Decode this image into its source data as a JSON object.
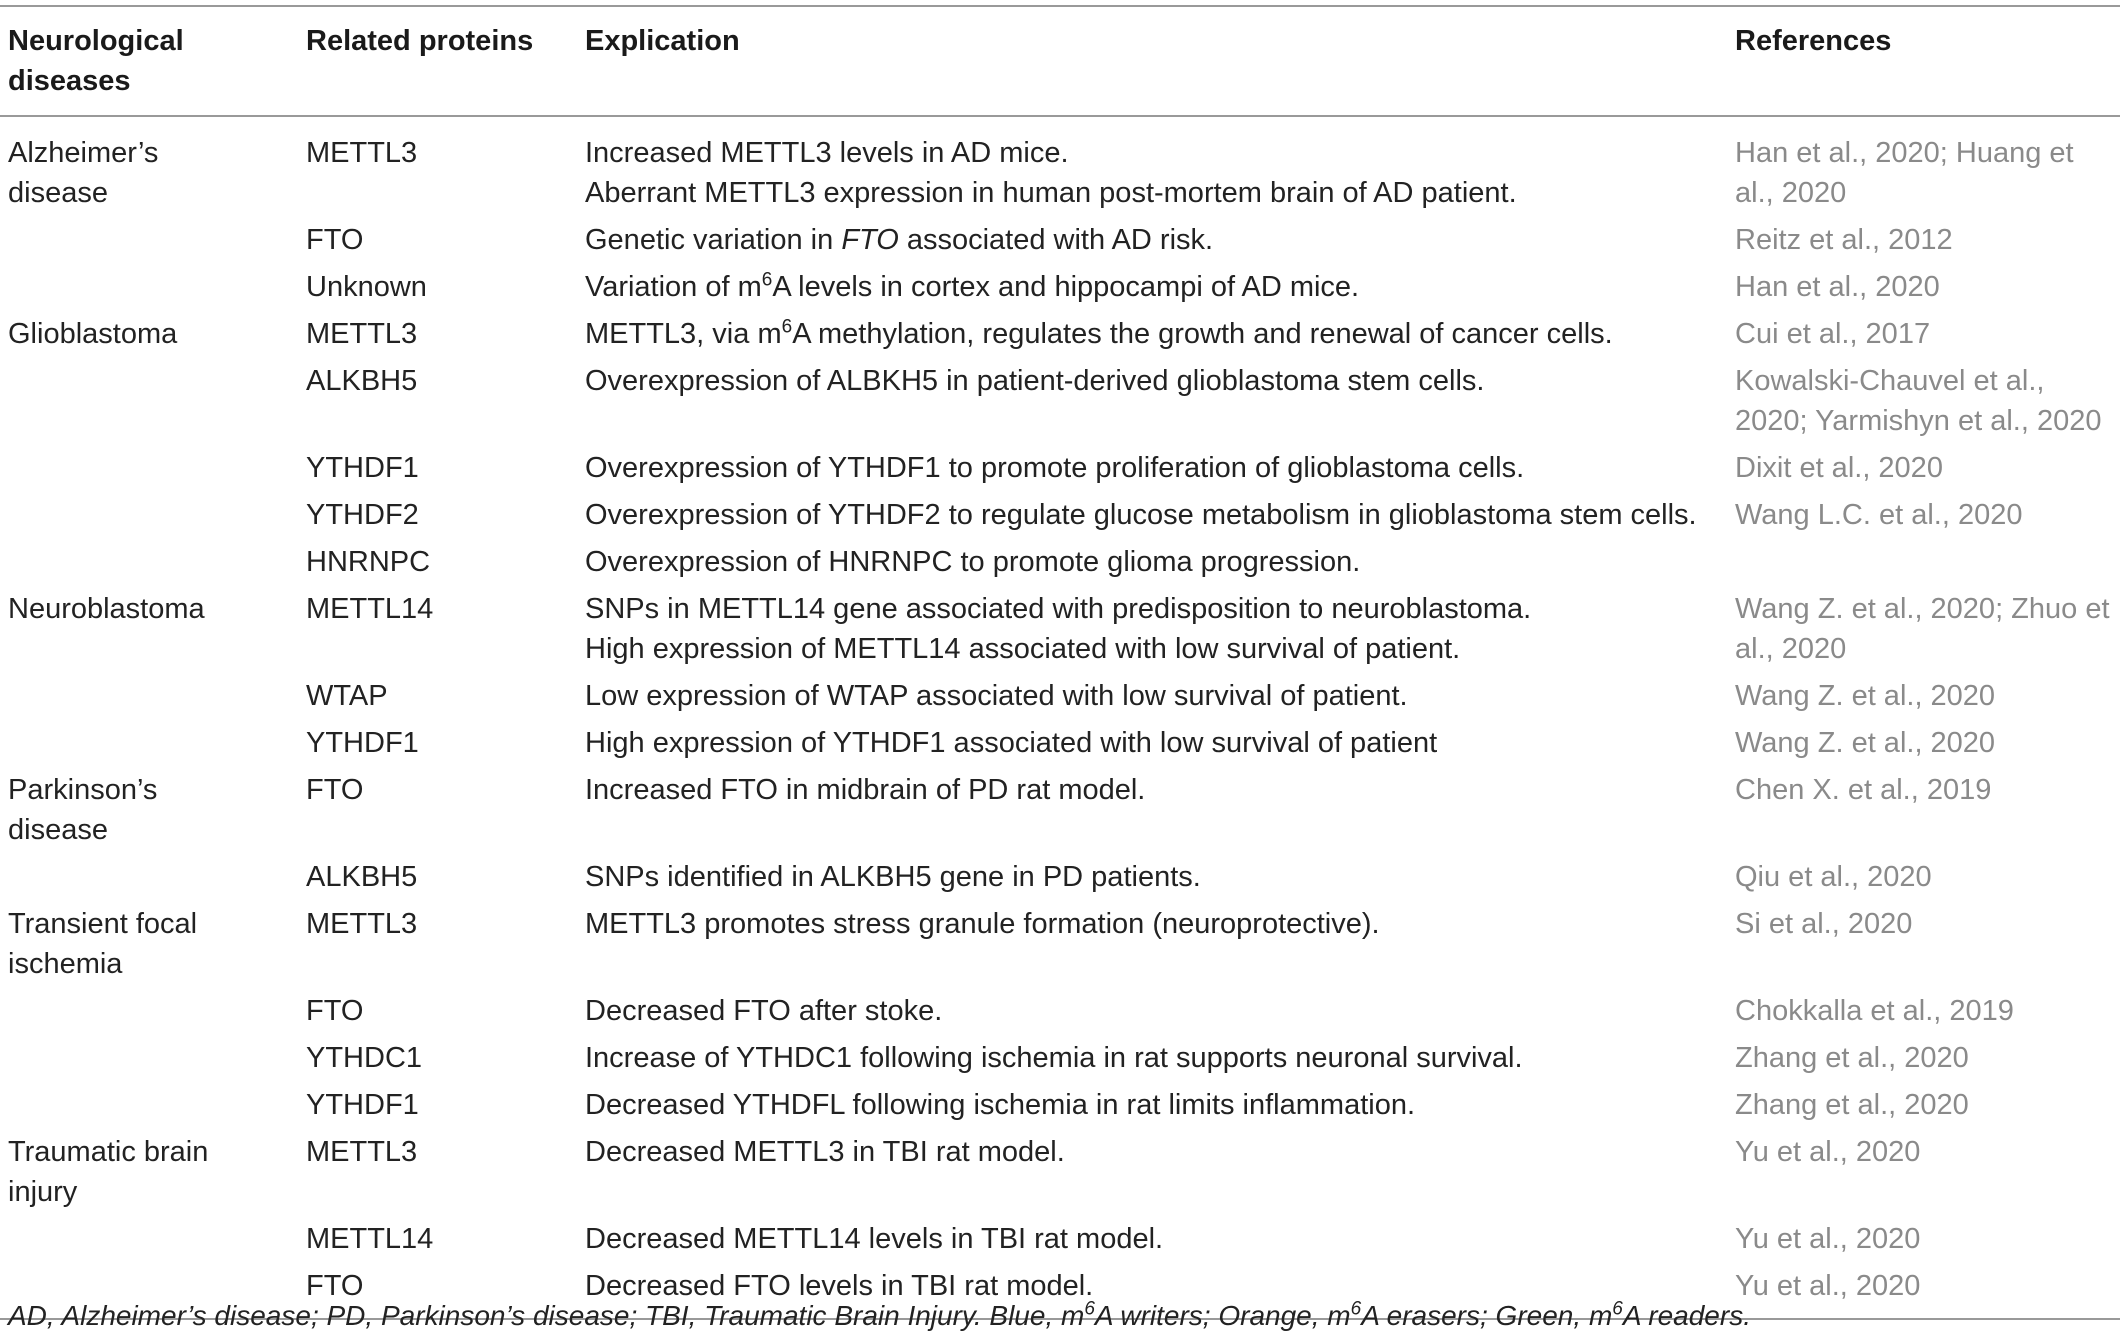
{
  "headers": [
    "Neurological diseases",
    "Related proteins",
    "Explication",
    "References"
  ],
  "rows": [
    {
      "disease": "Alzheimer’s disease",
      "protein": "METTL3",
      "lines": [
        "Increased METTL3 levels in AD mice.",
        "Aberrant METTL3 expression in human post-mortem brain of AD patient."
      ],
      "refs": "Han et al., 2020; Huang et al., 2020"
    },
    {
      "disease": "",
      "protein": "FTO",
      "lines": [
        "Genetic variation in FTO associated with AD risk."
      ],
      "refs": "Reitz et al., 2012"
    },
    {
      "disease": "",
      "protein": "Unknown",
      "lines": [
        "Variation of m6A levels in cortex and hippocampi of AD mice."
      ],
      "refs": "Han et al., 2020"
    },
    {
      "disease": "Glioblastoma",
      "protein": "METTL3",
      "lines": [
        "METTL3, via m6A methylation, regulates the growth and renewal of cancer cells."
      ],
      "refs": "Cui et al., 2017"
    },
    {
      "disease": "",
      "protein": "ALKBH5",
      "lines": [
        "Overexpression of ALBKH5 in patient-derived glioblastoma stem cells."
      ],
      "refs": "Kowalski-Chauvel et al., 2020; Yarmishyn et al., 2020"
    },
    {
      "disease": "",
      "protein": "YTHDF1",
      "lines": [
        "Overexpression of YTHDF1 to promote proliferation of glioblastoma cells."
      ],
      "refs": "Dixit et al., 2020"
    },
    {
      "disease": "",
      "protein": "YTHDF2",
      "lines": [
        "Overexpression of YTHDF2 to regulate glucose metabolism in glioblastoma stem cells."
      ],
      "refs": "Wang L.C. et al., 2020"
    },
    {
      "disease": "",
      "protein": "HNRNPC",
      "lines": [
        "Overexpression of HNRNPC to promote glioma progression."
      ],
      "refs": ""
    },
    {
      "disease": "Neuroblastoma",
      "protein": "METTL14",
      "lines": [
        "SNPs in METTL14 gene associated with predisposition to neuroblastoma.",
        "High expression of METTL14 associated with low survival of patient."
      ],
      "refs": "Wang Z. et al., 2020; Zhuo et al., 2020"
    },
    {
      "disease": "",
      "protein": "WTAP",
      "lines": [
        "Low expression of WTAP associated with low survival of patient."
      ],
      "refs": "Wang Z. et al., 2020"
    },
    {
      "disease": "",
      "protein": "YTHDF1",
      "lines": [
        "High expression of YTHDF1 associated with low survival of patient"
      ],
      "refs": "Wang Z. et al., 2020"
    },
    {
      "disease": "Parkinson’s disease",
      "protein": "FTO",
      "lines": [
        "Increased FTO in midbrain of PD rat model."
      ],
      "refs": "Chen X. et al., 2019"
    },
    {
      "disease": "",
      "protein": "ALKBH5",
      "lines": [
        "SNPs identified in ALKBH5 gene in PD patients."
      ],
      "refs": "Qiu et al., 2020"
    },
    {
      "disease": "Transient focal ischemia",
      "protein": "METTL3",
      "lines": [
        "METTL3 promotes stress granule formation (neuroprotective)."
      ],
      "refs": "Si et al., 2020"
    },
    {
      "disease": "",
      "protein": "FTO",
      "lines": [
        "Decreased FTO after stoke."
      ],
      "refs": "Chokkalla et al., 2019"
    },
    {
      "disease": "",
      "protein": "YTHDC1",
      "lines": [
        "Increase of YTHDC1 following ischemia in rat supports neuronal survival."
      ],
      "refs": "Zhang et al., 2020"
    },
    {
      "disease": "",
      "protein": "YTHDF1",
      "lines": [
        "Decreased YTHDFL following ischemia in rat limits inflammation."
      ],
      "refs": "Zhang et al., 2020"
    },
    {
      "disease": "Traumatic brain injury",
      "protein": "METTL3",
      "lines": [
        "Decreased METTL3 in TBI rat model."
      ],
      "refs": "Yu et al., 2020"
    },
    {
      "disease": "",
      "protein": "METTL14",
      "lines": [
        "Decreased METTL14 levels in TBI rat model."
      ],
      "refs": "Yu et al., 2020"
    },
    {
      "disease": "",
      "protein": "FTO",
      "lines": [
        "Decreased FTO levels in TBI rat model."
      ],
      "refs": "Yu et al., 2020"
    }
  ],
  "footnote": "AD, Alzheimer’s disease; PD, Parkinson’s disease; TBI, Traumatic Brain Injury. Blue, m6A writers; Orange, m6A erasers; Green, m6A readers."
}
